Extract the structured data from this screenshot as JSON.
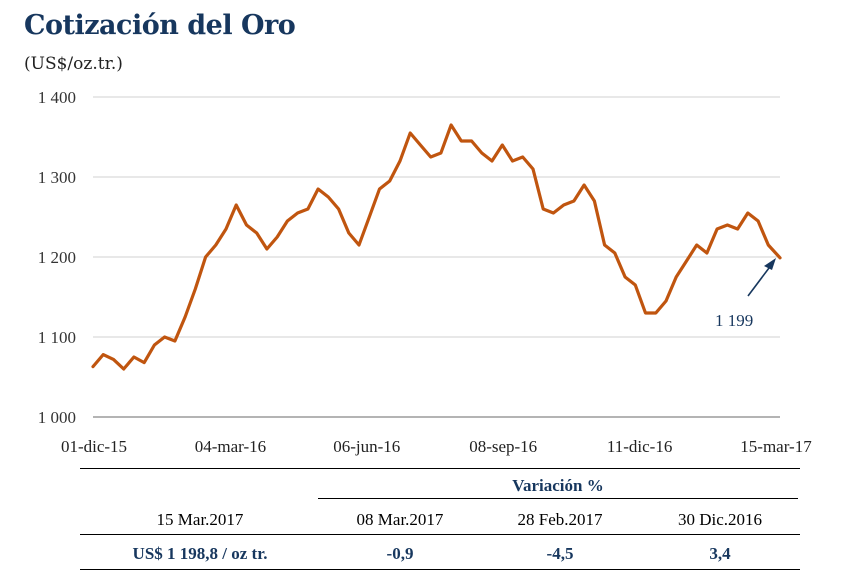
{
  "chart_data": {
    "type": "line",
    "title": "Cotización del Oro",
    "subtitle": "(US$/oz.tr.)",
    "ylim": [
      1000,
      1400
    ],
    "yticks": [
      "1 000",
      "1 100",
      "1 200",
      "1 300",
      "1 400"
    ],
    "yticks_values": [
      1000,
      1100,
      1200,
      1300,
      1400
    ],
    "xticks": [
      "01-dic-15",
      "04-mar-16",
      "06-jun-16",
      "08-sep-16",
      "11-dic-16",
      "15-mar-17"
    ],
    "grid": true,
    "series": [
      {
        "color": "#c0550f",
        "x": [
          "2015-12-01",
          "2015-12-08",
          "2015-12-15",
          "2015-12-22",
          "2015-12-29",
          "2016-01-05",
          "2016-01-12",
          "2016-01-19",
          "2016-01-26",
          "2016-02-02",
          "2016-02-09",
          "2016-02-16",
          "2016-02-23",
          "2016-03-01",
          "2016-03-08",
          "2016-03-15",
          "2016-03-22",
          "2016-03-29",
          "2016-04-05",
          "2016-04-12",
          "2016-04-19",
          "2016-04-26",
          "2016-05-03",
          "2016-05-10",
          "2016-05-17",
          "2016-05-24",
          "2016-05-31",
          "2016-06-07",
          "2016-06-14",
          "2016-06-21",
          "2016-06-28",
          "2016-07-05",
          "2016-07-12",
          "2016-07-19",
          "2016-07-26",
          "2016-08-02",
          "2016-08-09",
          "2016-08-16",
          "2016-08-23",
          "2016-08-30",
          "2016-09-06",
          "2016-09-13",
          "2016-09-20",
          "2016-09-27",
          "2016-10-04",
          "2016-10-11",
          "2016-10-18",
          "2016-10-25",
          "2016-11-01",
          "2016-11-08",
          "2016-11-15",
          "2016-11-22",
          "2016-11-29",
          "2016-12-06",
          "2016-12-13",
          "2016-12-20",
          "2016-12-27",
          "2017-01-03",
          "2017-01-10",
          "2017-01-17",
          "2017-01-24",
          "2017-01-31",
          "2017-02-07",
          "2017-02-14",
          "2017-02-21",
          "2017-02-28",
          "2017-03-07",
          "2017-03-15"
        ],
        "values": [
          1063,
          1078,
          1072,
          1060,
          1075,
          1068,
          1090,
          1100,
          1095,
          1125,
          1160,
          1200,
          1215,
          1235,
          1265,
          1240,
          1230,
          1210,
          1225,
          1245,
          1255,
          1260,
          1285,
          1275,
          1260,
          1230,
          1215,
          1250,
          1285,
          1295,
          1320,
          1355,
          1340,
          1325,
          1330,
          1365,
          1345,
          1345,
          1330,
          1320,
          1340,
          1320,
          1325,
          1310,
          1260,
          1255,
          1265,
          1270,
          1290,
          1270,
          1215,
          1205,
          1175,
          1165,
          1130,
          1130,
          1145,
          1175,
          1195,
          1215,
          1205,
          1235,
          1240,
          1235,
          1255,
          1245,
          1215,
          1199
        ]
      }
    ],
    "annotation": "1 199"
  },
  "table": {
    "header": "Variación %",
    "row1": [
      "15 Mar.2017",
      "08 Mar.2017",
      "28 Feb.2017",
      "30 Dic.2016"
    ],
    "row2": [
      "US$ 1 198,8 / oz tr.",
      "-0,9",
      "-4,5",
      "3,4"
    ]
  }
}
